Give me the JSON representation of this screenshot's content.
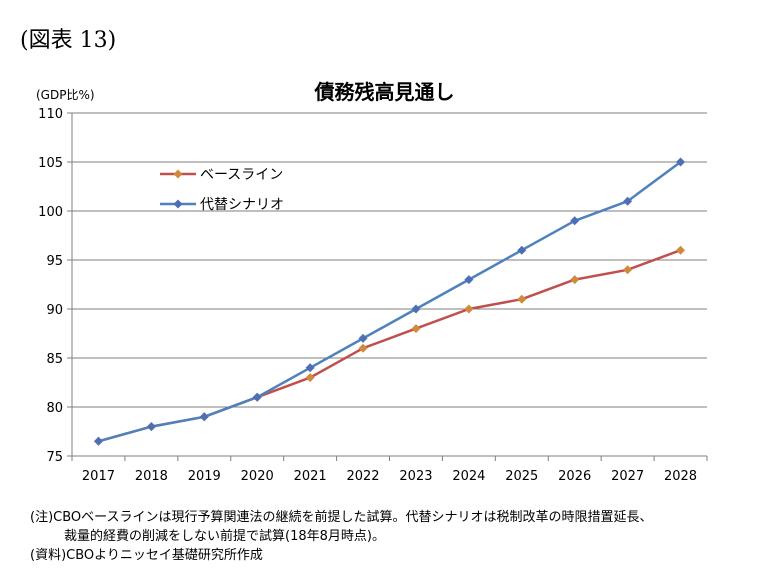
{
  "figure_label": "(図表 13)",
  "notes": {
    "line1": "(注)CBOベースラインは現行予算関連法の継続を前提した試算。代替シナリオは税制改革の時限措置延長、",
    "line2": "裁量的経費の削減をしない前提で試算(18年8月時点)。",
    "line3": "(資料)CBOよりニッセイ基礎研究所作成"
  },
  "chart_data": {
    "type": "line",
    "title": "債務残高見通し",
    "ylabel": "(GDP比%)",
    "xlabel": "",
    "categories": [
      "2017",
      "2018",
      "2019",
      "2020",
      "2021",
      "2022",
      "2023",
      "2024",
      "2025",
      "2026",
      "2027",
      "2028"
    ],
    "ylim": [
      75,
      110
    ],
    "yticks": [
      75,
      80,
      85,
      90,
      95,
      100,
      105,
      110
    ],
    "grid": true,
    "legend_position": "upper-left",
    "series": [
      {
        "name": "ベースライン",
        "color": "#c0504d",
        "marker_color": "#d08a3e",
        "values": [
          76.5,
          78,
          79,
          81,
          83,
          86,
          88,
          90,
          91,
          93,
          94,
          96
        ]
      },
      {
        "name": "代替シナリオ",
        "color": "#4f81bd",
        "marker_color": "#4f6fb5",
        "values": [
          76.5,
          78,
          79,
          81,
          84,
          87,
          90,
          93,
          96,
          99,
          101,
          105
        ]
      }
    ]
  }
}
